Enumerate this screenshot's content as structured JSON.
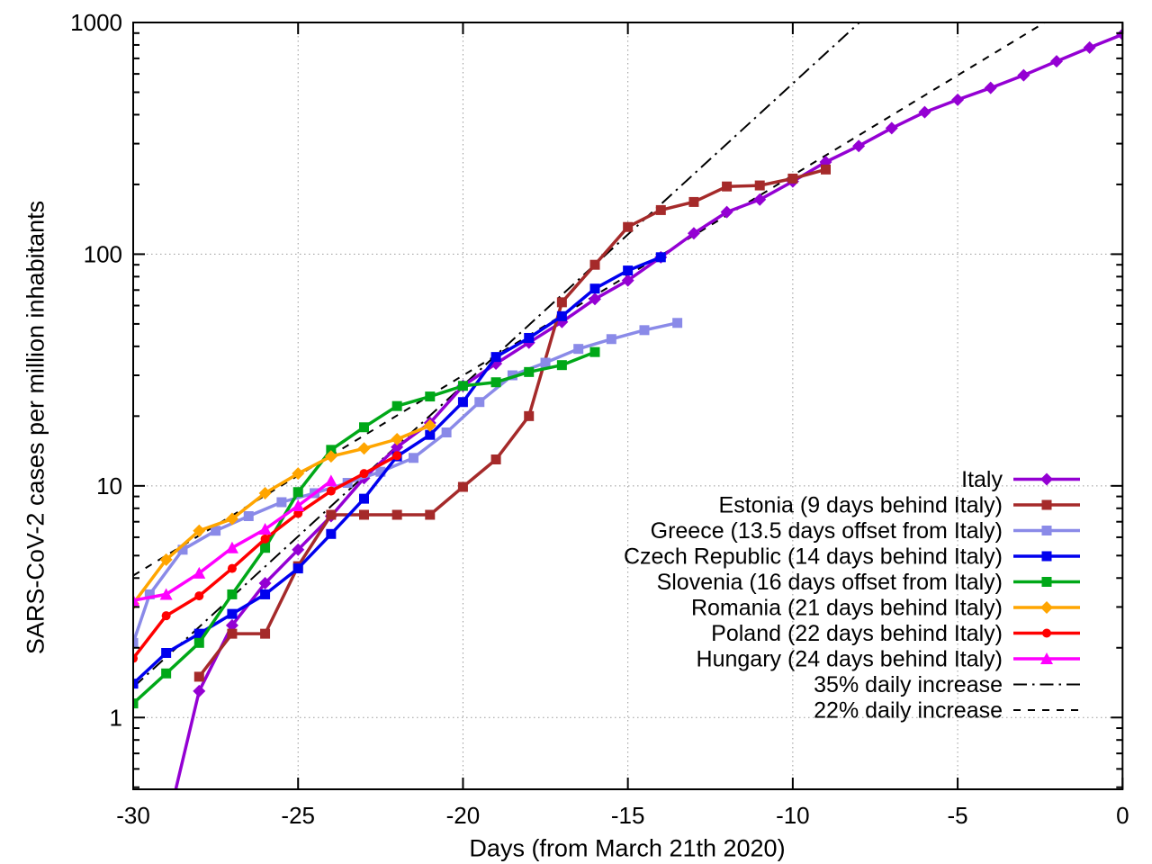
{
  "chart_data": {
    "type": "line",
    "title": "",
    "xlabel": "Days (from March 21th 2020)",
    "ylabel": "SARS-CoV-2 cases per million inhabitants",
    "x_axis": {
      "scale": "linear",
      "min": -30,
      "max": 0,
      "ticks": [
        -30,
        -25,
        -20,
        -15,
        -10,
        -5,
        0
      ]
    },
    "y_axis": {
      "scale": "log",
      "min": 0.49,
      "max": 1000,
      "ticks": [
        1,
        10,
        100,
        1000
      ]
    },
    "grid": true,
    "legend_position": "inside-bottom-right",
    "series": [
      {
        "name": "Italy",
        "color": "#9400D3",
        "marker": "diamond",
        "points": [
          [
            -28.71,
            0.49
          ],
          [
            -28,
            1.3
          ],
          [
            -27,
            2.5
          ],
          [
            -26,
            3.8
          ],
          [
            -25,
            5.3
          ],
          [
            -24,
            7.4
          ],
          [
            -23,
            10.8
          ],
          [
            -22,
            14.7
          ],
          [
            -21,
            18.7
          ],
          [
            -20,
            27
          ],
          [
            -19,
            33.7
          ],
          [
            -18,
            41.5
          ],
          [
            -17,
            51
          ],
          [
            -16,
            64
          ],
          [
            -15,
            77
          ],
          [
            -14,
            97
          ],
          [
            -13,
            123
          ],
          [
            -12,
            152
          ],
          [
            -11,
            172
          ],
          [
            -10,
            206
          ],
          [
            -9,
            250
          ],
          [
            -8,
            293
          ],
          [
            -7,
            350
          ],
          [
            -6,
            410
          ],
          [
            -5,
            464
          ],
          [
            -4,
            522
          ],
          [
            -3,
            592
          ],
          [
            -2,
            680
          ],
          [
            -1,
            779
          ],
          [
            0,
            888
          ]
        ]
      },
      {
        "name": "Estonia (9 days behind Italy)",
        "color": "#A52A2A",
        "marker": "square",
        "points": [
          [
            -28,
            1.5
          ],
          [
            -27,
            2.3
          ],
          [
            -26,
            2.3
          ],
          [
            -25,
            4.5
          ],
          [
            -24,
            7.5
          ],
          [
            -23,
            7.5
          ],
          [
            -22,
            7.5
          ],
          [
            -21,
            7.5
          ],
          [
            -20,
            9.9
          ],
          [
            -19,
            13
          ],
          [
            -18,
            20
          ],
          [
            -17,
            62
          ],
          [
            -16,
            90
          ],
          [
            -15,
            131
          ],
          [
            -14,
            155
          ],
          [
            -13,
            168
          ],
          [
            -12,
            196
          ],
          [
            -11,
            198
          ],
          [
            -10,
            212
          ],
          [
            -9,
            232
          ]
        ]
      },
      {
        "name": "Greece (13.5 days offset from Italy)",
        "color": "#8A8AE8",
        "marker": "square",
        "points": [
          [
            -30,
            2.1
          ],
          [
            -29.5,
            3.4
          ],
          [
            -28.5,
            5.3
          ],
          [
            -27.5,
            6.4
          ],
          [
            -26.5,
            7.4
          ],
          [
            -25.5,
            8.5
          ],
          [
            -24.5,
            9.3
          ],
          [
            -23.5,
            10.3
          ],
          [
            -22.5,
            11.5
          ],
          [
            -21.5,
            13.2
          ],
          [
            -20.5,
            17
          ],
          [
            -19.5,
            23
          ],
          [
            -18.5,
            30
          ],
          [
            -17.5,
            34
          ],
          [
            -16.5,
            39
          ],
          [
            -15.5,
            43
          ],
          [
            -14.5,
            47
          ],
          [
            -13.5,
            50.5
          ]
        ]
      },
      {
        "name": "Czech Republic (14 days behind Italy)",
        "color": "#0000EE",
        "marker": "square",
        "points": [
          [
            -30,
            1.4
          ],
          [
            -29,
            1.9
          ],
          [
            -28,
            2.3
          ],
          [
            -27,
            2.8
          ],
          [
            -26,
            3.4
          ],
          [
            -25,
            4.4
          ],
          [
            -24,
            6.2
          ],
          [
            -23,
            8.8
          ],
          [
            -22,
            13.4
          ],
          [
            -21,
            16.6
          ],
          [
            -20,
            23
          ],
          [
            -19,
            36
          ],
          [
            -18,
            43.5
          ],
          [
            -17,
            54
          ],
          [
            -16,
            71
          ],
          [
            -15,
            85
          ],
          [
            -14,
            97
          ]
        ]
      },
      {
        "name": "Slovenia (16 days offset from Italy)",
        "color": "#00A818",
        "marker": "square",
        "points": [
          [
            -30,
            1.15
          ],
          [
            -29,
            1.55
          ],
          [
            -28,
            2.1
          ],
          [
            -27,
            3.4
          ],
          [
            -26,
            5.4
          ],
          [
            -25,
            9.4
          ],
          [
            -24,
            14.3
          ],
          [
            -23,
            17.9
          ],
          [
            -22,
            22.1
          ],
          [
            -21,
            24.3
          ],
          [
            -20,
            27
          ],
          [
            -19,
            28
          ],
          [
            -18,
            31
          ],
          [
            -17,
            33.2
          ],
          [
            -16,
            37.8
          ]
        ]
      },
      {
        "name": "Romania (21 days behind Italy)",
        "color": "#FFA500",
        "marker": "diamond",
        "points": [
          [
            -30,
            3.1
          ],
          [
            -29,
            4.8
          ],
          [
            -28,
            6.4
          ],
          [
            -27,
            7.2
          ],
          [
            -26,
            9.3
          ],
          [
            -25,
            11.3
          ],
          [
            -24,
            13.4
          ],
          [
            -23,
            14.5
          ],
          [
            -22,
            15.9
          ],
          [
            -21,
            18.2
          ]
        ]
      },
      {
        "name": "Poland (22 days behind Italy)",
        "color": "#FF0000",
        "marker": "circle",
        "points": [
          [
            -30,
            1.8
          ],
          [
            -29,
            2.75
          ],
          [
            -28,
            3.35
          ],
          [
            -27,
            4.4
          ],
          [
            -26,
            5.9
          ],
          [
            -25,
            7.6
          ],
          [
            -24,
            9.5
          ],
          [
            -23,
            11.3
          ],
          [
            -22,
            13.5
          ]
        ]
      },
      {
        "name": "Hungary (24 days behind Italy)",
        "color": "#FF00FF",
        "marker": "triangle",
        "points": [
          [
            -30,
            3.2
          ],
          [
            -29,
            3.4
          ],
          [
            -28,
            4.2
          ],
          [
            -27,
            5.4
          ],
          [
            -26,
            6.5
          ],
          [
            -25,
            8.2
          ],
          [
            -24,
            10.5
          ]
        ]
      }
    ],
    "reference_lines": [
      {
        "name": "35% daily increase",
        "color": "#000000",
        "style": "dashdot",
        "points": [
          [
            -30,
            1.35
          ],
          [
            -7.98,
            1000
          ]
        ]
      },
      {
        "name": "22% daily increase",
        "color": "#000000",
        "style": "dashed",
        "points": [
          [
            -30,
            4.1
          ],
          [
            -2.36,
            1000
          ]
        ]
      }
    ]
  }
}
